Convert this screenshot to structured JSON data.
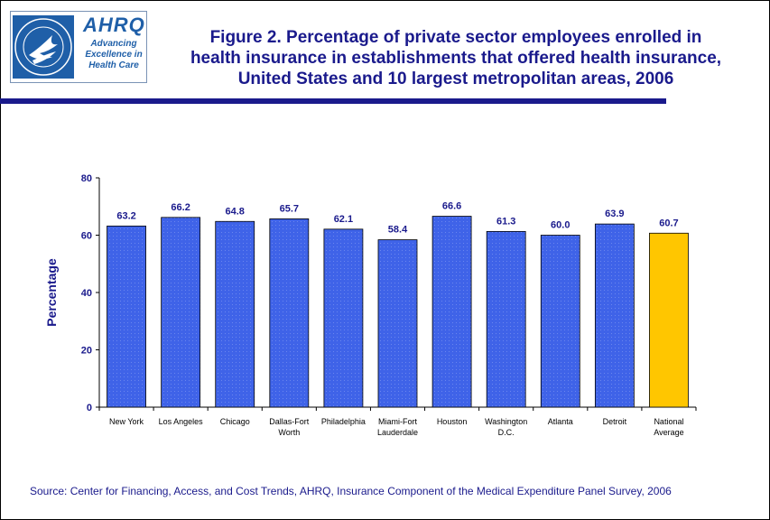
{
  "logo": {
    "name": "AHRQ",
    "tagline": [
      "Advancing",
      "Excellence in",
      "Health Care"
    ]
  },
  "title_lines": [
    "Figure 2. Percentage of private sector employees enrolled in",
    "health insurance in establishments that offered health insurance,",
    "United States and 10 largest metropolitan areas, 2006"
  ],
  "source": "Source: Center for Financing, Access, and Cost Trends, AHRQ, Insurance Component of the Medical Expenditure Panel Survey, 2006",
  "colors": {
    "bar": "#3f63e8",
    "highlight_bar": "#ffc600",
    "text": "#1a1a8c",
    "rule": "#1a1a8c"
  },
  "chart_data": {
    "type": "bar",
    "title": "Figure 2. Percentage of private sector employees enrolled in health insurance in establishments that offered health insurance, United States and 10 largest metropolitan areas, 2006",
    "categories": [
      [
        "New York"
      ],
      [
        "Los Angeles"
      ],
      [
        "Chicago"
      ],
      [
        "Dallas-Fort",
        "Worth"
      ],
      [
        "Philadelphia"
      ],
      [
        "Miami-Fort",
        "Lauderdale"
      ],
      [
        "Houston"
      ],
      [
        "Washington",
        "D.C."
      ],
      [
        "Atlanta"
      ],
      [
        "Detroit"
      ],
      [
        "National",
        "Average"
      ]
    ],
    "values": [
      63.2,
      66.2,
      64.8,
      65.7,
      62.1,
      58.4,
      66.6,
      61.3,
      60.0,
      63.9,
      60.7
    ],
    "value_labels": [
      "63.2",
      "66.2",
      "64.8",
      "65.7",
      "62.1",
      "58.4",
      "66.6",
      "61.3",
      "60.0",
      "63.9",
      "60.7"
    ],
    "highlight_index": 10,
    "ylabel": "Percentage",
    "xlabel": "",
    "ylim": [
      0,
      80
    ],
    "yticks": [
      0,
      20,
      40,
      60,
      80
    ],
    "grid": false,
    "legend": "none"
  }
}
